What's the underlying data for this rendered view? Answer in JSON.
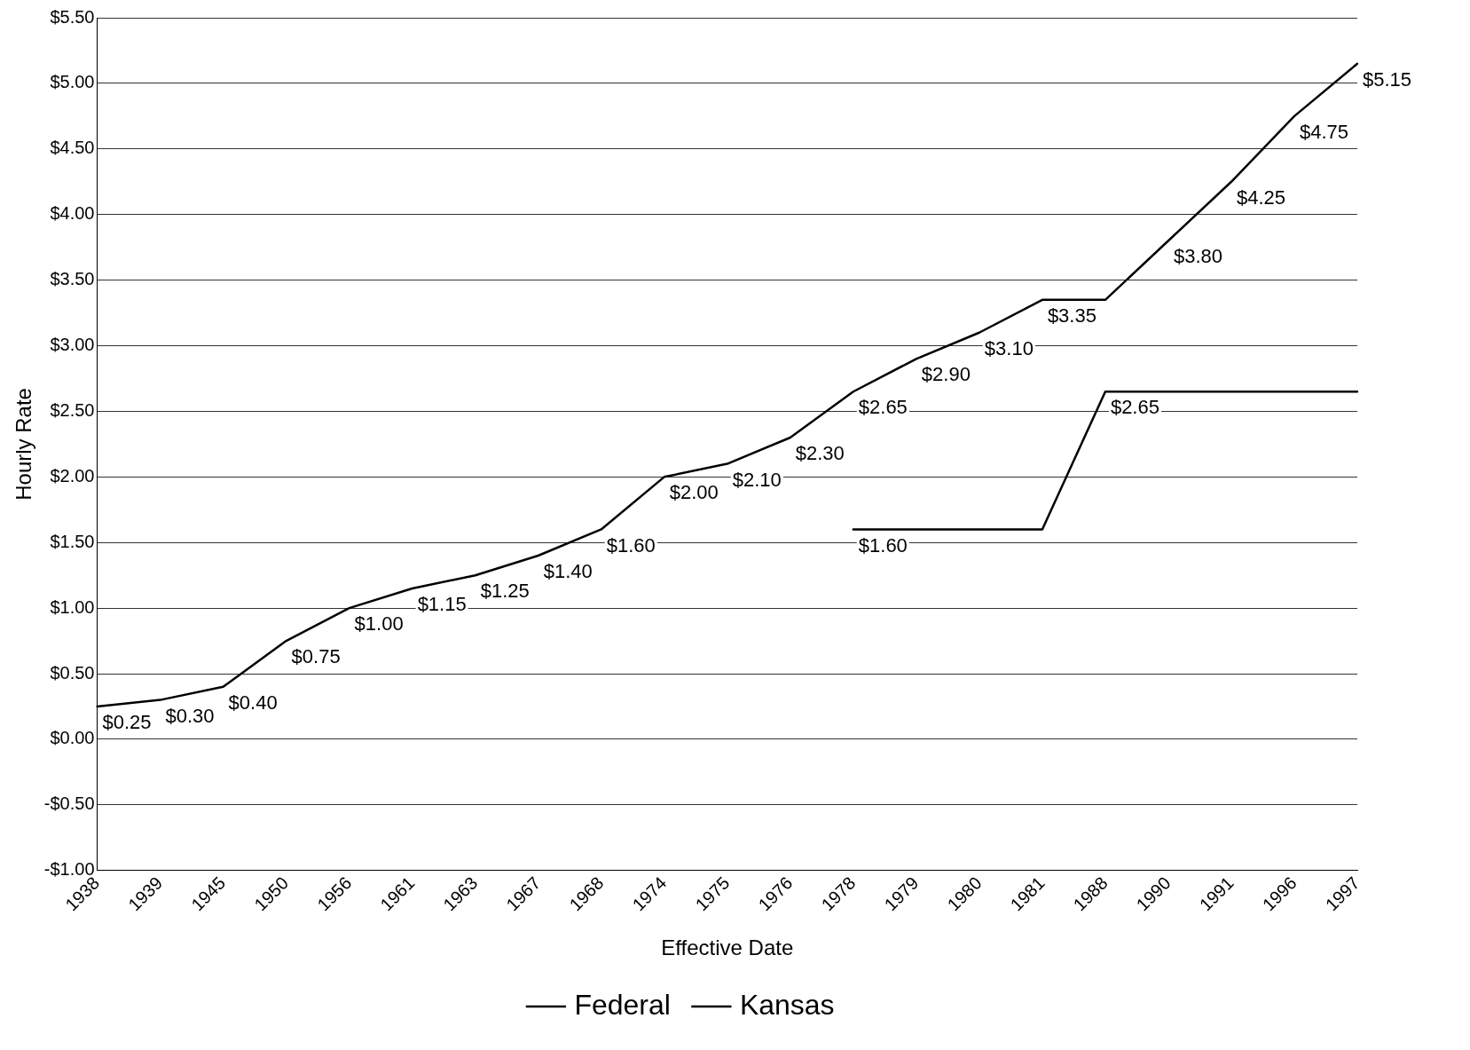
{
  "chart_data": {
    "type": "line",
    "xlabel": "Effective Date",
    "ylabel": "Hourly Rate",
    "categories": [
      "1938",
      "1939",
      "1945",
      "1950",
      "1956",
      "1961",
      "1963",
      "1967",
      "1968",
      "1974",
      "1975",
      "1976",
      "1978",
      "1979",
      "1980",
      "1981",
      "1988",
      "1990",
      "1991",
      "1996",
      "1997"
    ],
    "series": [
      {
        "name": "Federal",
        "color": "#000000",
        "values": [
          0.25,
          0.3,
          0.4,
          0.75,
          1.0,
          1.15,
          1.25,
          1.4,
          1.6,
          2.0,
          2.1,
          2.3,
          2.65,
          2.9,
          3.1,
          3.35,
          3.35,
          3.8,
          4.25,
          4.75,
          5.15
        ],
        "value_labels": [
          "$0.25",
          "$0.30",
          "$0.40",
          "$0.75",
          "$1.00",
          "$1.15",
          "$1.25",
          "$1.40",
          "$1.60",
          "$2.00",
          "$2.10",
          "$2.30",
          "$2.65",
          "$2.90",
          "$3.10",
          "$3.35",
          null,
          "$3.80",
          "$4.25",
          "$4.75",
          "$5.15"
        ]
      },
      {
        "name": "Kansas",
        "color": "#000000",
        "values": [
          null,
          null,
          null,
          null,
          null,
          null,
          null,
          null,
          null,
          null,
          null,
          null,
          1.6,
          1.6,
          1.6,
          1.6,
          2.65,
          2.65,
          2.65,
          2.65,
          2.65
        ],
        "value_labels": [
          null,
          null,
          null,
          null,
          null,
          null,
          null,
          null,
          null,
          null,
          null,
          null,
          "$1.60",
          null,
          null,
          null,
          "$2.65",
          null,
          null,
          null,
          null
        ]
      }
    ],
    "ylim": [
      -1,
      5.5
    ],
    "yticks": [
      {
        "value": -1,
        "label": "-$1.00"
      },
      {
        "value": -0.5,
        "label": "-$0.50"
      },
      {
        "value": 0,
        "label": "$0.00"
      },
      {
        "value": 0.5,
        "label": "$0.50"
      },
      {
        "value": 1,
        "label": "$1.00"
      },
      {
        "value": 1.5,
        "label": "$1.50"
      },
      {
        "value": 2,
        "label": "$2.00"
      },
      {
        "value": 2.5,
        "label": "$2.50"
      },
      {
        "value": 3,
        "label": "$3.00"
      },
      {
        "value": 3.5,
        "label": "$3.50"
      },
      {
        "value": 4,
        "label": "$4.00"
      },
      {
        "value": 4.5,
        "label": "$4.50"
      },
      {
        "value": 5,
        "label": "$5.00"
      },
      {
        "value": 5.5,
        "label": "$5.50"
      }
    ],
    "grid": "y",
    "legend": "bottom",
    "marker": "none",
    "line_style": "solid"
  }
}
